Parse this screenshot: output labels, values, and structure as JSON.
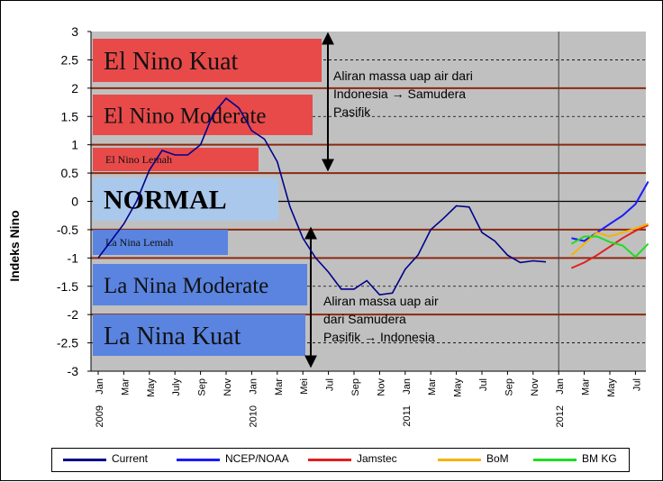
{
  "chart_data": {
    "type": "line",
    "ylabel": "Indeks Nino",
    "xlabel": "",
    "ylim": [
      -3,
      3
    ],
    "yticks": [
      "3",
      "2.5",
      "2",
      "1.5",
      "1",
      "0.5",
      "0",
      "-0.5",
      "-1",
      "-1.5",
      "-2",
      "-2.5",
      "-3"
    ],
    "x_tick_labels": [
      "Jan",
      "Mar",
      "May",
      "July",
      "Sep",
      "Nov",
      "Jan",
      "Mar",
      "Mei",
      "Jul",
      "Sep",
      "Nov",
      "Jan",
      "Mar",
      "May",
      "Jul",
      "Sep",
      "Nov",
      "Jan",
      "Mar",
      "May",
      "Jul"
    ],
    "year_labels": [
      "2009",
      "2010",
      "2011",
      "2012"
    ],
    "zones": [
      {
        "label": "El Nino Kuat",
        "color": "#e84a4a",
        "text_color": "#111"
      },
      {
        "label": "El Nino Moderate",
        "color": "#e84a4a",
        "text_color": "#111"
      },
      {
        "label": "El Nino Lemah",
        "color": "#e84a4a",
        "text_color": "#111"
      },
      {
        "label": "NORMAL",
        "color": "#aac8ec",
        "text_color": "#000"
      },
      {
        "label": "La Nina Lemah",
        "color": "#5a84e0",
        "text_color": "#111"
      },
      {
        "label": "La Nina Moderate",
        "color": "#5a84e0",
        "text_color": "#111"
      },
      {
        "label": "La Nina Kuat",
        "color": "#5a84e0",
        "text_color": "#111"
      }
    ],
    "annotations": [
      {
        "lines": [
          "Aliran massa uap air dari",
          "Indonesia → Samudera",
          "Pasifik"
        ]
      },
      {
        "lines": [
          "Aliran massa uap air",
          "dari Samudera",
          "Pasifik → Indonesia"
        ]
      }
    ],
    "series": [
      {
        "name": "Current",
        "color": "#00008b",
        "x": [
          0,
          1,
          2,
          3,
          4,
          5,
          6,
          7,
          8,
          9,
          10,
          11,
          12,
          13,
          14,
          15,
          16,
          17,
          18,
          19,
          20,
          21,
          22,
          23,
          24,
          25,
          26,
          27,
          28,
          29,
          30,
          31,
          32,
          33,
          34,
          35,
          36,
          37
        ],
        "values": [
          -1.0,
          -0.7,
          -0.4,
          0.0,
          0.55,
          0.9,
          0.82,
          0.82,
          1.0,
          1.55,
          1.82,
          1.65,
          1.25,
          1.1,
          0.7,
          -0.1,
          -0.65,
          -1.0,
          -1.25,
          -1.55,
          -1.55,
          -1.4,
          -1.65,
          -1.62,
          -1.2,
          -0.95,
          -0.5,
          -0.3,
          -0.08,
          -0.1,
          -0.55,
          -0.7,
          -0.95,
          -1.08,
          -1.05,
          -1.07,
          null,
          null
        ]
      },
      {
        "name": "NCEP/NOAA",
        "color": "#1a1aff",
        "x": [
          37,
          38,
          39,
          40,
          41,
          42,
          43
        ],
        "values": [
          -0.65,
          -0.7,
          -0.55,
          -0.4,
          -0.25,
          -0.05,
          0.35
        ]
      },
      {
        "name": "Jamstec",
        "color": "#e02020",
        "x": [
          37,
          38,
          39,
          40,
          41,
          42,
          43
        ],
        "values": [
          -1.18,
          -1.08,
          -0.95,
          -0.8,
          -0.65,
          -0.52,
          -0.42
        ]
      },
      {
        "name": "BoM",
        "color": "#f5b400",
        "x": [
          37,
          38,
          39,
          40,
          41,
          42,
          43
        ],
        "values": [
          -0.95,
          -0.75,
          -0.55,
          -0.62,
          -0.55,
          -0.48,
          -0.4
        ]
      },
      {
        "name": "BM KG",
        "color": "#20dd20",
        "x": [
          37,
          38,
          39,
          40,
          41,
          42,
          43
        ],
        "values": [
          -0.75,
          -0.62,
          -0.62,
          -0.72,
          -0.78,
          -0.98,
          -0.75
        ]
      }
    ]
  }
}
